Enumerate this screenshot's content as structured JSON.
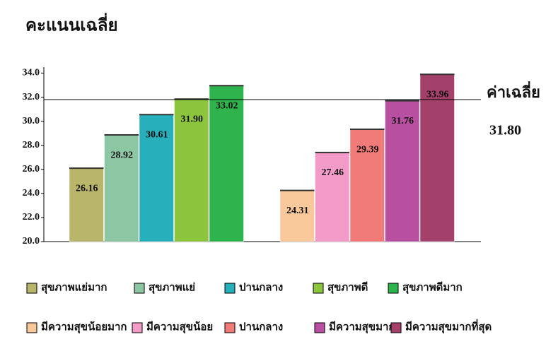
{
  "chart_data": {
    "type": "bar",
    "title": "คะแนนเฉลี่ย",
    "categories": [
      null,
      null
    ],
    "series": [
      {
        "name": "สุขภาพแย่มาก",
        "color": "#b9b66c",
        "values": [
          26.16,
          null
        ],
        "value_labels": [
          "26.16",
          null
        ]
      },
      {
        "name": "สุขภาพแย่",
        "color": "#8dc6a2",
        "values": [
          28.92,
          null
        ],
        "value_labels": [
          "28.92",
          null
        ]
      },
      {
        "name": "ปานกลาง",
        "color": "#27b0bb",
        "values": [
          30.61,
          null
        ],
        "value_labels": [
          "30.61",
          null
        ]
      },
      {
        "name": "สุขภาพดี",
        "color": "#8cc43e",
        "values": [
          31.9,
          null
        ],
        "value_labels": [
          "31.90",
          null
        ]
      },
      {
        "name": "สุขภาพดีมาก",
        "color": "#2fb34c",
        "values": [
          33.02,
          null
        ],
        "value_labels": [
          "33.02",
          null
        ]
      },
      {
        "name": "มีความสุขน้อยมาก",
        "color": "#f9c99b",
        "values": [
          null,
          24.31
        ],
        "value_labels": [
          null,
          "24.31"
        ]
      },
      {
        "name": "มีความสุขน้อย",
        "color": "#f39bc8",
        "values": [
          null,
          27.46
        ],
        "value_labels": [
          null,
          "27.46"
        ]
      },
      {
        "name": "ปานกลาง",
        "color": "#f07b79",
        "values": [
          null,
          29.39
        ],
        "value_labels": [
          null,
          "29.39"
        ]
      },
      {
        "name": "มีความสุขมาก",
        "color": "#b94fa1",
        "values": [
          null,
          31.76
        ],
        "value_labels": [
          null,
          "31.76"
        ]
      },
      {
        "name": "มีความสุขมากที่สุด",
        "color": "#a3416b",
        "values": [
          null,
          33.96
        ],
        "value_labels": [
          null,
          "33.96"
        ]
      }
    ],
    "ylim": [
      20,
      34.5
    ],
    "yticks": [
      {
        "value": 20,
        "label": "20.0"
      },
      {
        "value": 22,
        "label": "22.0"
      },
      {
        "value": 24,
        "label": "24.0"
      },
      {
        "value": 26,
        "label": "26.0"
      },
      {
        "value": 28,
        "label": "28.0"
      },
      {
        "value": 30,
        "label": "30.0"
      },
      {
        "value": 32,
        "label": "32.0"
      },
      {
        "value": 34,
        "label": "34.0"
      }
    ],
    "reference_line": {
      "value": 31.8,
      "label": "ค่าเฉลี่ย",
      "value_label": "31.80"
    },
    "grid": false
  }
}
